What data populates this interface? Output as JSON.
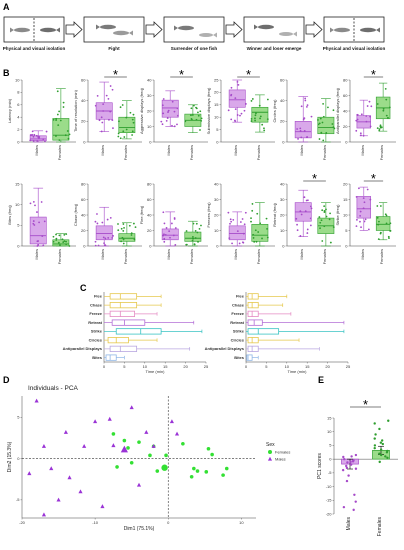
{
  "panels": {
    "A": "A",
    "B": "B",
    "C": "C",
    "D": "D",
    "E": "E"
  },
  "flow": {
    "steps": [
      "Physical and visual isolation",
      "Fight",
      "Surrender of one fish",
      "Winner and loser emerge",
      "Physical and visual isolation"
    ]
  },
  "colors": {
    "males": "#a64ac9",
    "males_fill": "#d9a8ea",
    "females": "#2e9e2e",
    "females_fill": "#9bdc8a",
    "pca_females": "#33e033",
    "pca_males": "#9a33d6"
  },
  "chart_data": [
    {
      "type": "box",
      "panel": "B",
      "groups": [
        "Males",
        "Females"
      ],
      "plots": [
        {
          "ylabel": "Latency (min)",
          "sig": false,
          "ylim": [
            0,
            10
          ],
          "yticks": [
            0,
            2,
            4,
            6,
            8,
            10
          ],
          "males": {
            "q1": 0.2,
            "med": 0.5,
            "q3": 1.0,
            "min": 0.0,
            "max": 1.8
          },
          "females": {
            "q1": 0.3,
            "med": 1.1,
            "q3": 3.8,
            "min": 0.0,
            "max": 8.6
          }
        },
        {
          "ylabel": "Time of resolution (min)",
          "sig": true,
          "ylim": [
            0,
            60
          ],
          "yticks": [
            0,
            20,
            40,
            60
          ],
          "males": {
            "q1": 22,
            "med": 30,
            "q3": 38,
            "min": 10,
            "max": 58
          },
          "females": {
            "q1": 9,
            "med": 14,
            "q3": 24,
            "min": 3,
            "max": 40
          }
        },
        {
          "ylabel": "Aggressive displays (freq)",
          "sig": true,
          "ylim": [
            0,
            40
          ],
          "yticks": [
            0,
            10,
            20,
            30,
            40
          ],
          "males": {
            "q1": 16,
            "med": 22,
            "q3": 27,
            "min": 10,
            "max": 33
          },
          "females": {
            "q1": 10,
            "med": 14,
            "q3": 18,
            "min": 6,
            "max": 24
          }
        },
        {
          "ylabel": "Submissive displays (freq)",
          "sig": true,
          "ylim": [
            0,
            25
          ],
          "yticks": [
            0,
            5,
            10,
            15,
            20,
            25
          ],
          "males": {
            "q1": 14,
            "med": 17,
            "q3": 21,
            "min": 8,
            "max": 25
          },
          "females": {
            "q1": 8,
            "med": 12,
            "q3": 14,
            "min": 4,
            "max": 19
          }
        },
        {
          "ylabel": "Circles (freq)",
          "sig": false,
          "ylim": [
            0,
            60
          ],
          "yticks": [
            0,
            20,
            40,
            60
          ],
          "males": {
            "q1": 4,
            "med": 10,
            "q3": 20,
            "min": 0,
            "max": 44
          },
          "females": {
            "q1": 8,
            "med": 14,
            "q3": 24,
            "min": 0,
            "max": 42
          }
        },
        {
          "ylabel": "Antiparallel displays (freq)",
          "sig": true,
          "ylim": [
            0,
            80
          ],
          "yticks": [
            0,
            20,
            40,
            60,
            80
          ],
          "males": {
            "q1": 18,
            "med": 26,
            "q3": 34,
            "min": 8,
            "max": 54
          },
          "females": {
            "q1": 30,
            "med": 44,
            "q3": 58,
            "min": 14,
            "max": 76
          }
        },
        {
          "ylabel": "Bites (freq)",
          "sig": false,
          "ylim": [
            0,
            15
          ],
          "yticks": [
            0,
            5,
            10,
            15
          ],
          "males": {
            "q1": 0.5,
            "med": 2.5,
            "q3": 7,
            "min": 0,
            "max": 14
          },
          "females": {
            "q1": 0,
            "med": 0.5,
            "q3": 1.5,
            "min": 0,
            "max": 3
          }
        },
        {
          "ylabel": "Chase (freq)",
          "sig": false,
          "ylim": [
            0,
            80
          ],
          "yticks": [
            0,
            20,
            40,
            60,
            80
          ],
          "males": {
            "q1": 8,
            "med": 16,
            "q3": 26,
            "min": 0,
            "max": 50
          },
          "females": {
            "q1": 6,
            "med": 10,
            "q3": 16,
            "min": 0,
            "max": 30
          }
        },
        {
          "ylabel": "Flee (freq)",
          "sig": false,
          "ylim": [
            0,
            80
          ],
          "yticks": [
            0,
            20,
            40,
            60,
            80
          ],
          "males": {
            "q1": 8,
            "med": 14,
            "q3": 22,
            "min": 0,
            "max": 44
          },
          "females": {
            "q1": 6,
            "med": 10,
            "q3": 18,
            "min": 0,
            "max": 32
          }
        },
        {
          "ylabel": "Freezes (freq)",
          "sig": false,
          "ylim": [
            0,
            40
          ],
          "yticks": [
            0,
            10,
            20,
            30,
            40
          ],
          "males": {
            "q1": 4,
            "med": 8,
            "q3": 13,
            "min": 0,
            "max": 22
          },
          "females": {
            "q1": 3,
            "med": 7,
            "q3": 14,
            "min": 0,
            "max": 28
          }
        },
        {
          "ylabel": "Retreat (freq)",
          "sig": true,
          "ylim": [
            0,
            40
          ],
          "yticks": [
            0,
            10,
            20,
            30,
            40
          ],
          "males": {
            "q1": 16,
            "med": 22,
            "q3": 28,
            "min": 6,
            "max": 36
          },
          "females": {
            "q1": 8,
            "med": 13,
            "q3": 18,
            "min": 0,
            "max": 28
          }
        },
        {
          "ylabel": "Strike (freq)",
          "sig": true,
          "ylim": [
            0,
            20
          ],
          "yticks": [
            0,
            5,
            10,
            15,
            20
          ],
          "males": {
            "q1": 9,
            "med": 12,
            "q3": 16,
            "min": 5,
            "max": 19
          },
          "females": {
            "q1": 5,
            "med": 7,
            "q3": 9.5,
            "min": 2,
            "max": 14
          }
        }
      ]
    },
    {
      "type": "box-horizontal",
      "panel": "C",
      "behaviors": [
        "Flee",
        "Chase",
        "Freeze",
        "Retreat",
        "Strike",
        "Circles",
        "Antiparallel Displays",
        "Bites"
      ],
      "behavior_colors": [
        "#e6c84d",
        "#e6c84d",
        "#e48bc3",
        "#b36fd6",
        "#39c3c3",
        "#e6c84d",
        "#b9a7e0",
        "#8fb6e6"
      ],
      "xlabel": "Time (min)",
      "xlim": [
        0,
        25
      ],
      "xticks": [
        0,
        5,
        10,
        15,
        20,
        25
      ],
      "subplots": [
        {
          "name": "Males",
          "boxes": [
            {
              "min": 0,
              "q1": 1.5,
              "med": 4,
              "q3": 8,
              "max": 14
            },
            {
              "min": 0,
              "q1": 1.5,
              "med": 4,
              "q3": 8,
              "max": 14
            },
            {
              "min": 0,
              "q1": 1.5,
              "med": 4,
              "q3": 7.5,
              "max": 13
            },
            {
              "min": 0,
              "q1": 2,
              "med": 5,
              "q3": 10,
              "max": 22
            },
            {
              "min": 0,
              "q1": 3,
              "med": 9,
              "q3": 14,
              "max": 24
            },
            {
              "min": 0,
              "q1": 1,
              "med": 3,
              "q3": 6,
              "max": 13
            },
            {
              "min": 0,
              "q1": 1.5,
              "med": 4,
              "q3": 8,
              "max": 21
            },
            {
              "min": 0,
              "q1": 0.5,
              "med": 1.5,
              "q3": 3,
              "max": 5
            }
          ]
        },
        {
          "name": "Females",
          "boxes": [
            {
              "min": 0,
              "q1": 0.5,
              "med": 1.5,
              "q3": 3,
              "max": 10
            },
            {
              "min": 0,
              "q1": 0.5,
              "med": 1.5,
              "q3": 3,
              "max": 9
            },
            {
              "min": 0,
              "q1": 0.5,
              "med": 1.5,
              "q3": 3,
              "max": 11
            },
            {
              "min": 0,
              "q1": 0.5,
              "med": 2,
              "q3": 4,
              "max": 24
            },
            {
              "min": 0,
              "q1": 0.5,
              "med": 3,
              "q3": 8,
              "max": 24
            },
            {
              "min": 0,
              "q1": 0.5,
              "med": 1.5,
              "q3": 3,
              "max": 13
            },
            {
              "min": 0,
              "q1": 0.5,
              "med": 1.5,
              "q3": 3,
              "max": 18
            },
            {
              "min": 0,
              "q1": 0.2,
              "med": 0.5,
              "q3": 1.5,
              "max": 3
            }
          ]
        }
      ]
    },
    {
      "type": "scatter",
      "panel": "D",
      "title": "Individuals - PCA",
      "xlabel": "Dim1 (75.1%)",
      "ylabel": "Dim2 (15.3%)",
      "xlim": [
        -20,
        12
      ],
      "ylim": [
        -7.2,
        7.6
      ],
      "xticks": [
        -20,
        -10,
        0,
        10
      ],
      "yticks": [
        -5,
        0,
        5
      ],
      "legend_title": "Sex",
      "legend_position": "right",
      "series": [
        {
          "name": "Females",
          "marker": "circle",
          "points": [
            [
              2,
              1.8
            ],
            [
              -6,
              2.2
            ],
            [
              -4,
              2
            ],
            [
              -2,
              1.5
            ],
            [
              -7,
              -1
            ],
            [
              -5,
              -0.5
            ],
            [
              3.5,
              -1.2
            ],
            [
              4,
              -1.5
            ],
            [
              6,
              0.5
            ],
            [
              7.5,
              -2
            ],
            [
              -1.5,
              -1.5
            ],
            [
              8,
              -1.2
            ],
            [
              5.5,
              1.2
            ],
            [
              3.2,
              -2.2
            ],
            [
              -5.5,
              1.3
            ],
            [
              -0.3,
              0.4
            ],
            [
              5.2,
              -1.6
            ],
            [
              -7.5,
              3
            ],
            [
              -2.5,
              0.4
            ]
          ],
          "centroid": [
            -0.5,
            -1.1
          ]
        },
        {
          "name": "Males",
          "marker": "triangle",
          "points": [
            [
              -18,
              7
            ],
            [
              -14,
              3.2
            ],
            [
              -17,
              1.5
            ],
            [
              -19,
              -1.8
            ],
            [
              -16,
              -1.2
            ],
            [
              -13.5,
              -2.3
            ],
            [
              -12,
              -4
            ],
            [
              -15,
              -5
            ],
            [
              -9,
              -5.8
            ],
            [
              -11.5,
              1.5
            ],
            [
              -10,
              4.5
            ],
            [
              -8,
              4.8
            ],
            [
              -5,
              6.2
            ],
            [
              -3,
              3.2
            ],
            [
              -2,
              1.5
            ],
            [
              1.2,
              3
            ],
            [
              0.5,
              4.5
            ],
            [
              -4,
              -3.2
            ],
            [
              -7.5,
              1.6
            ],
            [
              -17,
              -6.8
            ]
          ],
          "centroid": [
            -6,
            1.1
          ]
        }
      ]
    },
    {
      "type": "bar",
      "panel": "E",
      "ylabel": "PC1 scores",
      "categories": [
        "Males",
        "Females"
      ],
      "values": [
        -1.8,
        3.2
      ],
      "errors": [
        1.8,
        1.5
      ],
      "ylim": [
        -20,
        15
      ],
      "yticks": [
        -20,
        -15,
        -10,
        -5,
        0,
        5,
        10,
        15
      ],
      "significance": "*",
      "points": {
        "Males": [
          -0.5,
          -2,
          -3.5,
          -1,
          0,
          1.5,
          -2.5,
          -4,
          -6,
          -8,
          -13,
          -15.5,
          -17.5,
          -18.5,
          -0.8,
          0.8,
          -1.2,
          -3.2,
          1
        ],
        "Females": [
          14,
          13,
          9,
          7.5,
          6,
          5,
          4,
          3,
          2.5,
          2,
          1,
          0.5,
          -1,
          3.5,
          5.5,
          6.8,
          1.5,
          11
        ]
      }
    }
  ]
}
